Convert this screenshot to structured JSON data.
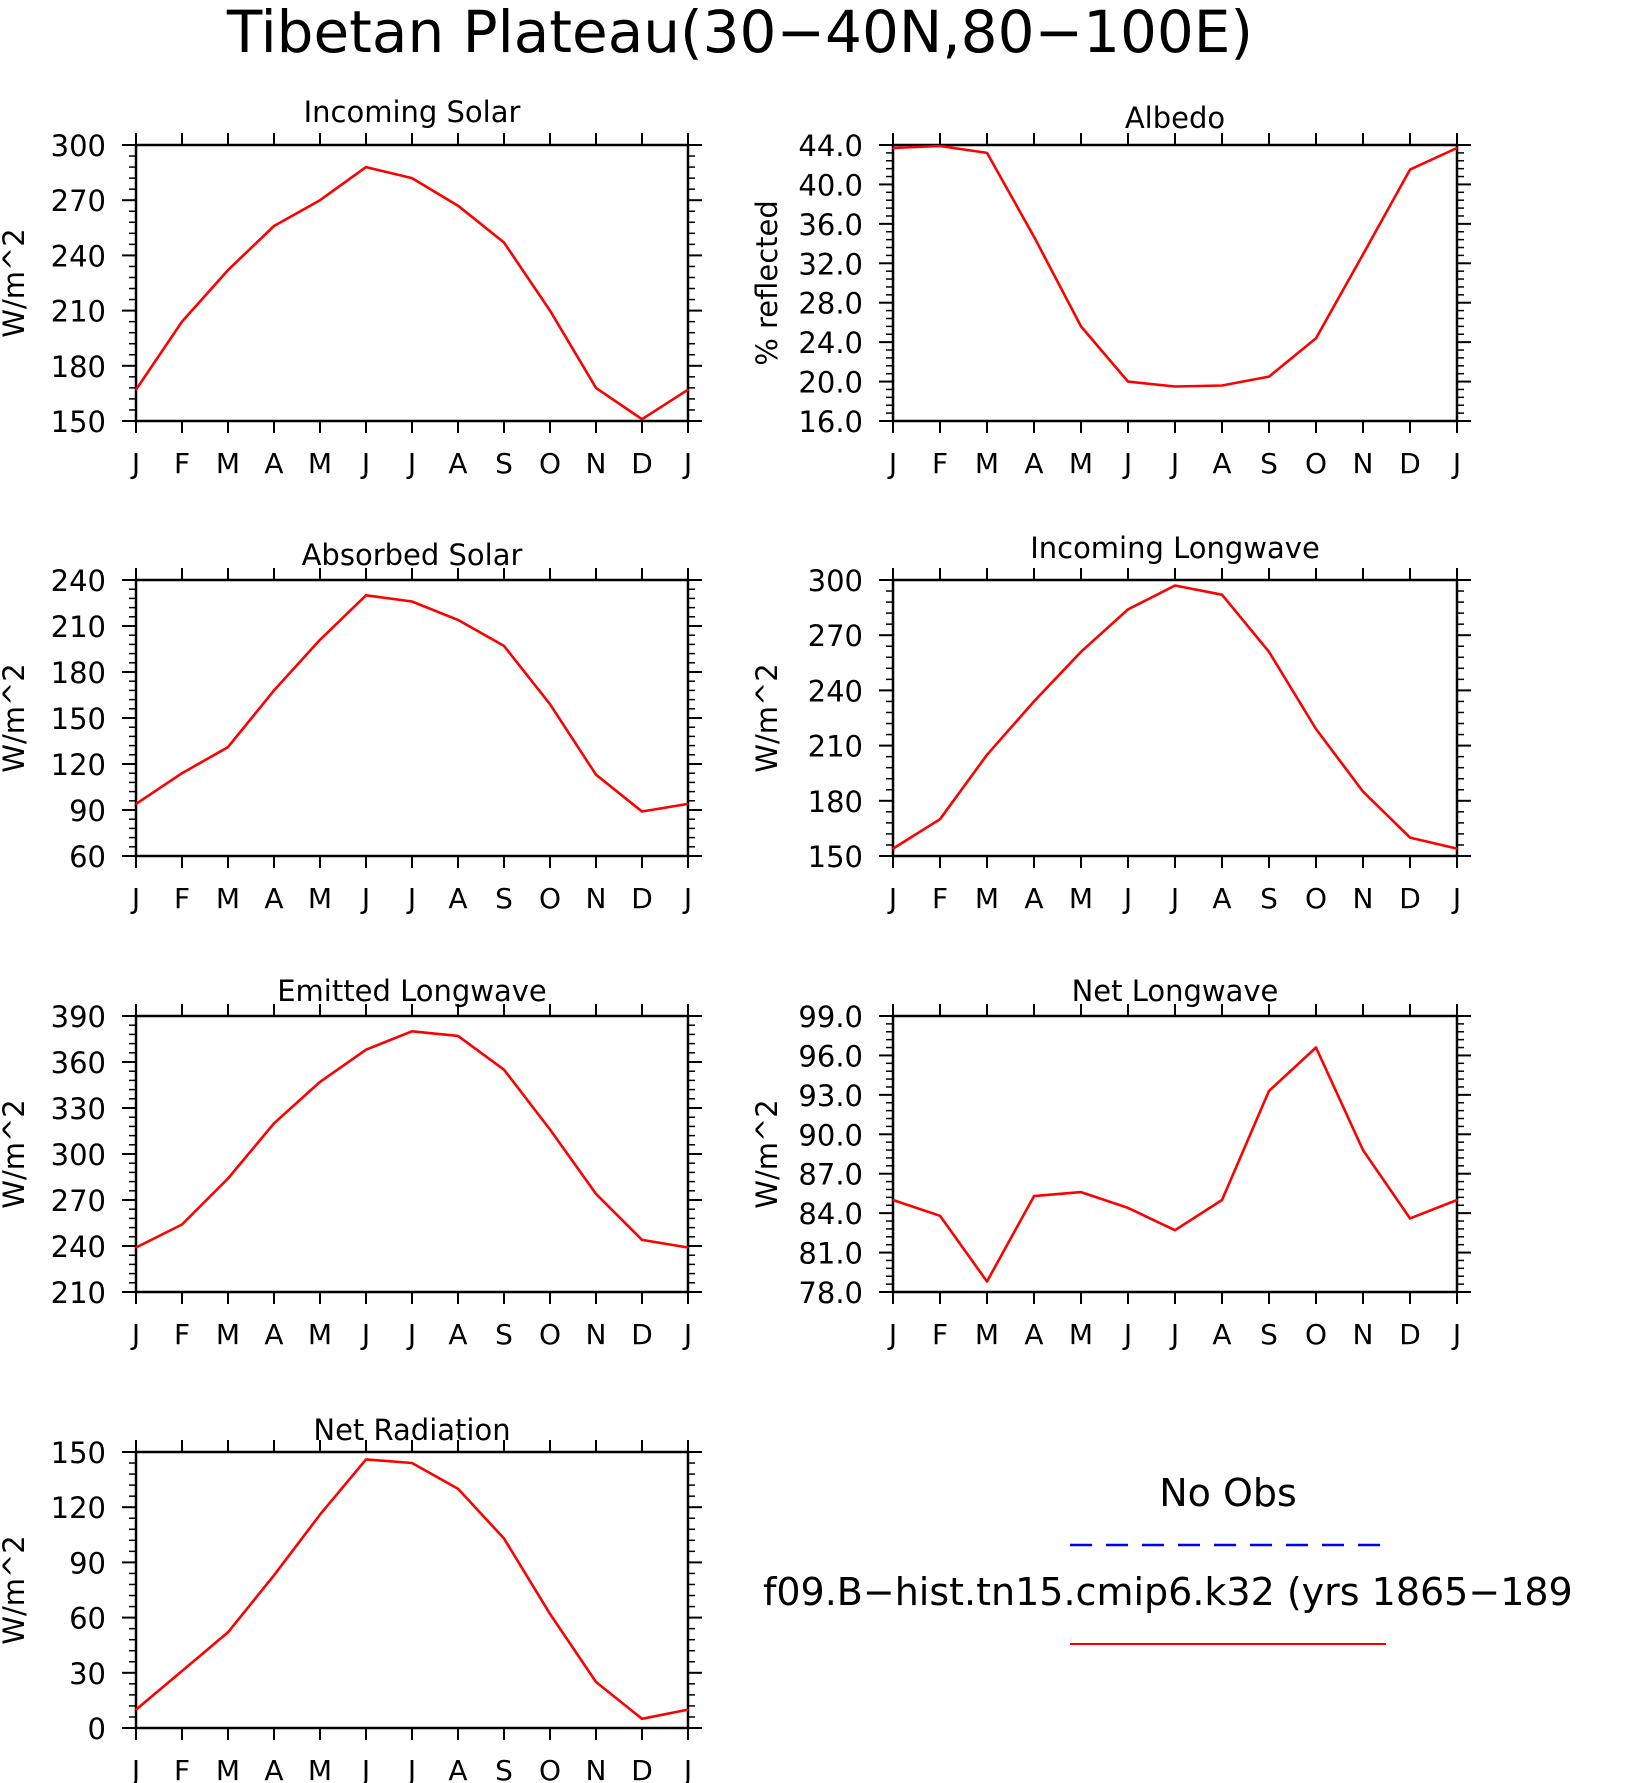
{
  "title": "Tibetan Plateau(30−40N,80−100E)",
  "month_labels": [
    "J",
    "F",
    "M",
    "A",
    "M",
    "J",
    "J",
    "A",
    "S",
    "O",
    "N",
    "D",
    "J"
  ],
  "colors": {
    "model": "#ff0000",
    "obs": "#0000ff",
    "axes": "#000000"
  },
  "legend": {
    "obs_label": "No Obs",
    "model_label": "f09.B−hist.tn15.cmip6.k32 (yrs 1865−189"
  },
  "chart_data": [
    {
      "type": "line",
      "title": "Incoming Solar",
      "ylabel": "W/m^2",
      "ylim": [
        150,
        300
      ],
      "yticks": [
        "150",
        "180",
        "210",
        "240",
        "270",
        "300"
      ],
      "categories": [
        "J",
        "F",
        "M",
        "A",
        "M",
        "J",
        "J",
        "A",
        "S",
        "O",
        "N",
        "D",
        "J"
      ],
      "series": [
        {
          "values": [
            167,
            204,
            232,
            256,
            270,
            288,
            282,
            267,
            247,
            210,
            168,
            151,
            167
          ]
        }
      ]
    },
    {
      "type": "line",
      "title": "Albedo",
      "ylabel": "% reflected",
      "ylim": [
        16,
        44
      ],
      "yticks": [
        "16.0",
        "20.0",
        "24.0",
        "28.0",
        "32.0",
        "36.0",
        "40.0",
        "44.0"
      ],
      "categories": [
        "J",
        "F",
        "M",
        "A",
        "M",
        "J",
        "J",
        "A",
        "S",
        "O",
        "N",
        "D",
        "J"
      ],
      "series": [
        {
          "values": [
            43.7,
            43.9,
            43.2,
            34.7,
            25.6,
            20.0,
            19.5,
            19.6,
            20.5,
            24.4,
            32.9,
            41.5,
            43.7
          ]
        }
      ]
    },
    {
      "type": "line",
      "title": "Absorbed Solar",
      "ylabel": "W/m^2",
      "ylim": [
        60,
        240
      ],
      "yticks": [
        "60",
        "90",
        "120",
        "150",
        "180",
        "210",
        "240"
      ],
      "categories": [
        "J",
        "F",
        "M",
        "A",
        "M",
        "J",
        "J",
        "A",
        "S",
        "O",
        "N",
        "D",
        "J"
      ],
      "series": [
        {
          "values": [
            94,
            114,
            131,
            168,
            201,
            230,
            226,
            214,
            197,
            159,
            113,
            89,
            94
          ]
        }
      ]
    },
    {
      "type": "line",
      "title": "Incoming Longwave",
      "ylabel": "W/m^2",
      "ylim": [
        150,
        300
      ],
      "yticks": [
        "150",
        "180",
        "210",
        "240",
        "270",
        "300"
      ],
      "categories": [
        "J",
        "F",
        "M",
        "A",
        "M",
        "J",
        "J",
        "A",
        "S",
        "O",
        "N",
        "D",
        "J"
      ],
      "series": [
        {
          "values": [
            154,
            170,
            205,
            234,
            261,
            284,
            297,
            292,
            261,
            219,
            185,
            160,
            154
          ]
        }
      ]
    },
    {
      "type": "line",
      "title": "Emitted Longwave",
      "ylabel": "W/m^2",
      "ylim": [
        210,
        390
      ],
      "yticks": [
        "210",
        "240",
        "270",
        "300",
        "330",
        "360",
        "390"
      ],
      "categories": [
        "J",
        "F",
        "M",
        "A",
        "M",
        "J",
        "J",
        "A",
        "S",
        "O",
        "N",
        "D",
        "J"
      ],
      "series": [
        {
          "values": [
            239,
            254,
            284,
            320,
            347,
            368,
            380,
            377,
            355,
            316,
            274,
            244,
            239
          ]
        }
      ]
    },
    {
      "type": "line",
      "title": "Net Longwave",
      "ylabel": "W/m^2",
      "ylim": [
        78,
        99
      ],
      "yticks": [
        "78.0",
        "81.0",
        "84.0",
        "87.0",
        "90.0",
        "93.0",
        "96.0",
        "99.0"
      ],
      "categories": [
        "J",
        "F",
        "M",
        "A",
        "M",
        "J",
        "J",
        "A",
        "S",
        "O",
        "N",
        "D",
        "J"
      ],
      "series": [
        {
          "values": [
            85.0,
            83.8,
            78.8,
            85.3,
            85.6,
            84.4,
            82.7,
            85.0,
            93.3,
            96.6,
            88.8,
            83.6,
            85.0
          ]
        }
      ]
    },
    {
      "type": "line",
      "title": "Net Radiation",
      "ylabel": "W/m^2",
      "ylim": [
        0,
        150
      ],
      "yticks": [
        "0",
        "30",
        "60",
        "90",
        "120",
        "150"
      ],
      "categories": [
        "J",
        "F",
        "M",
        "A",
        "M",
        "J",
        "J",
        "A",
        "S",
        "O",
        "N",
        "D",
        "J"
      ],
      "series": [
        {
          "values": [
            10,
            31,
            52,
            83,
            116,
            146,
            144,
            130,
            103,
            62,
            25,
            5,
            10
          ]
        }
      ]
    }
  ]
}
